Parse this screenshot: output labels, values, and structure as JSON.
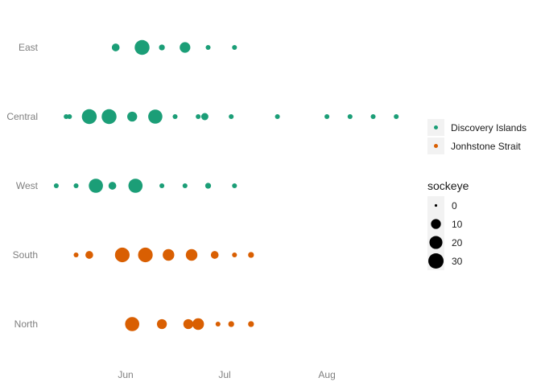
{
  "chart_data": {
    "type": "scatter",
    "x_axis": {
      "type": "date",
      "range": [
        "2015-05-11",
        "2015-08-25"
      ],
      "ticks": [
        "2015-06-01",
        "2015-07-01",
        "2015-08-01"
      ],
      "tick_labels": [
        "Jun",
        "Jul",
        "Aug"
      ]
    },
    "y_axis": {
      "type": "category",
      "categories": [
        "North",
        "South",
        "West",
        "Central",
        "East"
      ]
    },
    "grid": false,
    "legend_placement": "right",
    "color_legend": {
      "entries": [
        {
          "label": "Discovery Islands",
          "color": "#1b9e77"
        },
        {
          "label": "Jonhstone Strait",
          "color": "#d95f02"
        }
      ]
    },
    "size_legend": {
      "title": "sockeye",
      "breaks": [
        0,
        10,
        20,
        30
      ],
      "labels": [
        "0",
        "10",
        "20",
        "30"
      ]
    },
    "series": [
      {
        "name": "Discovery Islands",
        "color": "#1b9e77",
        "points": [
          {
            "region": "East",
            "date": "2015-05-29",
            "sockeye": 5
          },
          {
            "region": "East",
            "date": "2015-06-06",
            "sockeye": 28
          },
          {
            "region": "East",
            "date": "2015-06-12",
            "sockeye": 2
          },
          {
            "region": "East",
            "date": "2015-06-19",
            "sockeye": 12
          },
          {
            "region": "East",
            "date": "2015-06-26",
            "sockeye": 1
          },
          {
            "region": "East",
            "date": "2015-07-04",
            "sockeye": 1
          },
          {
            "region": "Central",
            "date": "2015-05-14",
            "sockeye": 1
          },
          {
            "region": "Central",
            "date": "2015-05-15",
            "sockeye": 1
          },
          {
            "region": "Central",
            "date": "2015-05-21",
            "sockeye": 28
          },
          {
            "region": "Central",
            "date": "2015-05-27",
            "sockeye": 28
          },
          {
            "region": "Central",
            "date": "2015-06-03",
            "sockeye": 10
          },
          {
            "region": "Central",
            "date": "2015-06-10",
            "sockeye": 25
          },
          {
            "region": "Central",
            "date": "2015-06-16",
            "sockeye": 1
          },
          {
            "region": "Central",
            "date": "2015-06-23",
            "sockeye": 1
          },
          {
            "region": "Central",
            "date": "2015-06-25",
            "sockeye": 4
          },
          {
            "region": "Central",
            "date": "2015-07-03",
            "sockeye": 1
          },
          {
            "region": "Central",
            "date": "2015-07-17",
            "sockeye": 1
          },
          {
            "region": "Central",
            "date": "2015-08-01",
            "sockeye": 1
          },
          {
            "region": "Central",
            "date": "2015-08-08",
            "sockeye": 1
          },
          {
            "region": "Central",
            "date": "2015-08-15",
            "sockeye": 1
          },
          {
            "region": "Central",
            "date": "2015-08-22",
            "sockeye": 1
          },
          {
            "region": "West",
            "date": "2015-05-11",
            "sockeye": 1
          },
          {
            "region": "West",
            "date": "2015-05-17",
            "sockeye": 1
          },
          {
            "region": "West",
            "date": "2015-05-23",
            "sockeye": 25
          },
          {
            "region": "West",
            "date": "2015-05-28",
            "sockeye": 5
          },
          {
            "region": "West",
            "date": "2015-06-04",
            "sockeye": 25
          },
          {
            "region": "West",
            "date": "2015-06-12",
            "sockeye": 1
          },
          {
            "region": "West",
            "date": "2015-06-19",
            "sockeye": 1
          },
          {
            "region": "West",
            "date": "2015-06-26",
            "sockeye": 2
          },
          {
            "region": "West",
            "date": "2015-07-04",
            "sockeye": 1
          }
        ]
      },
      {
        "name": "Jonhstone Strait",
        "color": "#d95f02",
        "points": [
          {
            "region": "South",
            "date": "2015-05-17",
            "sockeye": 1
          },
          {
            "region": "South",
            "date": "2015-05-21",
            "sockeye": 5
          },
          {
            "region": "South",
            "date": "2015-05-31",
            "sockeye": 27
          },
          {
            "region": "South",
            "date": "2015-06-07",
            "sockeye": 27
          },
          {
            "region": "South",
            "date": "2015-06-14",
            "sockeye": 15
          },
          {
            "region": "South",
            "date": "2015-06-21",
            "sockeye": 15
          },
          {
            "region": "South",
            "date": "2015-06-28",
            "sockeye": 5
          },
          {
            "region": "South",
            "date": "2015-07-04",
            "sockeye": 1
          },
          {
            "region": "South",
            "date": "2015-07-09",
            "sockeye": 2
          },
          {
            "region": "North",
            "date": "2015-06-03",
            "sockeye": 25
          },
          {
            "region": "North",
            "date": "2015-06-12",
            "sockeye": 10
          },
          {
            "region": "North",
            "date": "2015-06-20",
            "sockeye": 10
          },
          {
            "region": "North",
            "date": "2015-06-23",
            "sockeye": 15
          },
          {
            "region": "North",
            "date": "2015-06-29",
            "sockeye": 1
          },
          {
            "region": "North",
            "date": "2015-07-03",
            "sockeye": 2
          },
          {
            "region": "North",
            "date": "2015-07-09",
            "sockeye": 2
          }
        ]
      }
    ]
  }
}
